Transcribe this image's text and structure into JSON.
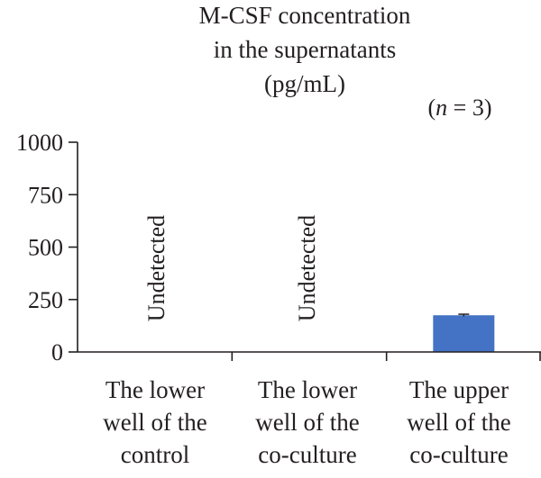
{
  "chart_data": {
    "type": "bar",
    "title_lines": [
      "M-CSF concentration",
      "in the supernatants",
      "(pg/mL)"
    ],
    "n_label_prefix": "(",
    "n_label_var": "n",
    "n_label_rest": " = 3)",
    "xlabel": "",
    "ylabel": "",
    "ylim": [
      0,
      1000
    ],
    "yticks": [
      "0",
      "250",
      "500",
      "750",
      "1000"
    ],
    "ytick_values": [
      0,
      250,
      500,
      750,
      1000
    ],
    "categories": [
      [
        "The lower",
        "well of the",
        "control"
      ],
      [
        "The lower",
        "well of the",
        "co-culture"
      ],
      [
        "The upper",
        "well of the",
        "co-culture"
      ]
    ],
    "values": [
      null,
      null,
      175
    ],
    "error": [
      null,
      null,
      5
    ],
    "bar_annotations": [
      "Undetected",
      "Undetected",
      ""
    ],
    "bar_color": "#4472c4",
    "grid": false,
    "legend": "none"
  }
}
